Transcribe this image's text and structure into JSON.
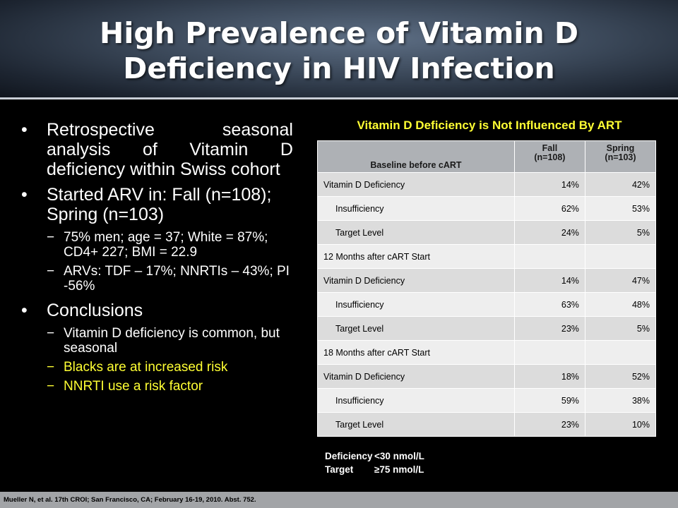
{
  "slide": {
    "title_line1": "High Prevalence of Vitamin D",
    "title_line2": "Deficiency in HIV Infection"
  },
  "bullets": {
    "b1": "Retrospective seasonal analysis of Vitamin D deficiency within Swiss cohort",
    "b2": "Started ARV in: Fall (n=108); Spring (n=103)",
    "b2_sub": [
      "75% men; age = 37; White = 87%; CD4+ 227; BMI = 22.9",
      "ARVs:  TDF – 17%; NNRTIs – 43%; PI -56%"
    ],
    "b3": "Conclusions",
    "b3_sub": [
      "Vitamin D deficiency is common, but seasonal",
      "Blacks are at increased risk",
      "NNRTI use a risk factor"
    ],
    "bullet_glyph": "•",
    "dash_glyph": "−"
  },
  "table": {
    "title": "Vitamin D Deficiency is Not Influenced By ART",
    "headers": {
      "col1": "Baseline before cART",
      "col2_line1": "Fall",
      "col2_line2": "(n=108)",
      "col3_line1": "Spring",
      "col3_line2": "(n=103)"
    },
    "rows": [
      {
        "label": "Vitamin D Deficiency",
        "fall": "14%",
        "spring": "42%"
      },
      {
        "label": "Insufficiency",
        "fall": "62%",
        "spring": "53%"
      },
      {
        "label": "Target Level",
        "fall": "24%",
        "spring": "5%"
      },
      {
        "label": "12 Months after cART Start",
        "fall": "",
        "spring": ""
      },
      {
        "label": "Vitamin D Deficiency",
        "fall": "14%",
        "spring": "47%"
      },
      {
        "label": "Insufficiency",
        "fall": "63%",
        "spring": "48%"
      },
      {
        "label": "Target Level",
        "fall": "23%",
        "spring": "5%"
      },
      {
        "label": "18 Months after cART Start",
        "fall": "",
        "spring": ""
      },
      {
        "label": "Vitamin D Deficiency",
        "fall": "18%",
        "spring": "52%"
      },
      {
        "label": "Insufficiency",
        "fall": "59%",
        "spring": "38%"
      },
      {
        "label": "Target Level",
        "fall": "23%",
        "spring": "10%"
      }
    ]
  },
  "definitions": {
    "deficiency_label": "Deficiency",
    "deficiency_value": "<30 nmol/L",
    "target_label": "Target",
    "target_value": "≥75 nmol/L"
  },
  "citation": "Mueller N, et al. 17th CROI; San Francisco, CA; February 16-19, 2010. Abst. 752.",
  "colors": {
    "highlight": "#ffff33",
    "header_cell": "#aeb1b5",
    "row_shade": "#dcdcdc",
    "row_light": "#eeeeee"
  }
}
